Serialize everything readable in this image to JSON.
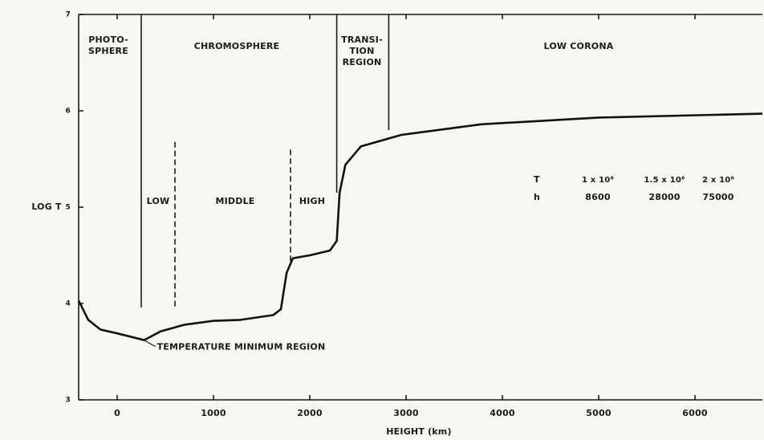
{
  "chart_data": {
    "type": "line",
    "xlabel": "HEIGHT (km)",
    "ylabel": "LOG T",
    "x": [
      -400,
      -300,
      -175,
      0,
      240,
      280,
      450,
      700,
      1000,
      1280,
      1620,
      1700,
      1760,
      1825,
      2000,
      2210,
      2280,
      2310,
      2370,
      2530,
      2950,
      3780,
      5000,
      6700
    ],
    "values": [
      4.03,
      3.83,
      3.73,
      3.69,
      3.63,
      3.62,
      3.71,
      3.78,
      3.82,
      3.83,
      3.88,
      3.94,
      4.32,
      4.47,
      4.5,
      4.55,
      4.65,
      5.15,
      5.44,
      5.63,
      5.75,
      5.86,
      5.93,
      5.97
    ],
    "color": "#111111",
    "xlim": [
      -400,
      6700
    ],
    "ylim": [
      3,
      7
    ],
    "xticks": [
      0,
      1000,
      2000,
      3000,
      4000,
      5000,
      6000
    ],
    "yticks": [
      3,
      4,
      5,
      6,
      7
    ],
    "boundaries": [
      {
        "x": 250,
        "from": 3.96,
        "to": 7,
        "dashed": false
      },
      {
        "x": 2280,
        "from": 5.15,
        "to": 7,
        "dashed": false
      },
      {
        "x": 2820,
        "from": 5.8,
        "to": 7,
        "dashed": false
      },
      {
        "x": 600,
        "from": 3.97,
        "to": 5.68,
        "dashed": true
      },
      {
        "x": 1800,
        "from": 4.44,
        "to": 5.62,
        "dashed": true
      }
    ],
    "regions": [
      {
        "lines": [
          "PHOTO-",
          "SPHERE"
        ]
      },
      {
        "lines": [
          "CHROMOSPHERE"
        ]
      },
      {
        "lines": [
          "TRANSI-",
          "TION",
          "REGION"
        ]
      },
      {
        "lines": [
          "LOW CORONA"
        ]
      }
    ],
    "subregions": [
      "LOW",
      "MIDDLE",
      "HIGH"
    ],
    "annotations": [
      {
        "text": "TEMPERATURE MINIMUM REGION",
        "x": 280,
        "y": 3.62
      }
    ],
    "table": {
      "rows": [
        [
          "T",
          "1 x 10⁶",
          "1.5 x 10⁶",
          "2 x 10⁶"
        ],
        [
          "h",
          "8600",
          "28000",
          "75000"
        ]
      ]
    }
  }
}
